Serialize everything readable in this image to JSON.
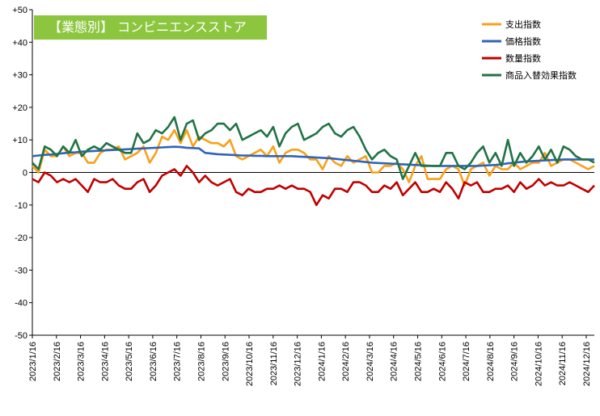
{
  "title": "【業態別】 コンビニエンスストア",
  "chart_data": {
    "type": "line",
    "ylim": [
      -50,
      50
    ],
    "y_ticks": [
      "+50",
      "+40",
      "+30",
      "+20",
      "+10",
      "0",
      "-10",
      "-20",
      "-30",
      "-40",
      "-50"
    ],
    "x_ticks": [
      "2023/1/16",
      "2023/2/16",
      "2023/3/16",
      "2023/4/16",
      "2023/5/16",
      "2023/6/16",
      "2023/7/16",
      "2023/8/16",
      "2023/9/16",
      "2023/10/16",
      "2023/11/16",
      "2023/12/16",
      "2024/1/16",
      "2024/2/16",
      "2024/3/16",
      "2024/4/16",
      "2024/5/16",
      "2024/6/16",
      "2024/7/16",
      "2024/8/16",
      "2024/9/16",
      "2024/10/16",
      "2024/11/16",
      "2024/12/16"
    ],
    "legend_position": "top-right",
    "grid": false,
    "series": [
      {
        "name": "支出指数",
        "color": "#f7a11a",
        "values": [
          2,
          0,
          7,
          5,
          5,
          8,
          5,
          6,
          6,
          3,
          3,
          6,
          7,
          7,
          8,
          4,
          5,
          6,
          8,
          3,
          6,
          11,
          10,
          13,
          9,
          13,
          8,
          11,
          10,
          9,
          9,
          8,
          10,
          5,
          4,
          5,
          6,
          7,
          5,
          8,
          3,
          6,
          7,
          7,
          6,
          4,
          4,
          1,
          5,
          3,
          2,
          5,
          3,
          4,
          5,
          0,
          0,
          2,
          2,
          3,
          1,
          -3,
          2,
          5,
          -2,
          -2,
          -2,
          1,
          2,
          1,
          -4,
          1,
          2,
          3,
          -1,
          2,
          1,
          1,
          3,
          1,
          2,
          3,
          3,
          6,
          2,
          3,
          4,
          4,
          3,
          2,
          1,
          2
        ]
      },
      {
        "name": "価格指数",
        "color": "#2f64b8",
        "values": [
          5,
          5.2,
          5.4,
          5.5,
          5.7,
          5.9,
          6.1,
          6.2,
          6.4,
          6.5,
          6.6,
          6.7,
          6.8,
          6.9,
          7,
          7.1,
          7.2,
          7.3,
          7.4,
          7.5,
          7.6,
          7.7,
          7.8,
          7.9,
          7.8,
          7.6,
          7.5,
          7.4,
          6,
          5.8,
          5.6,
          5.5,
          5.4,
          5.3,
          5.2,
          5.2,
          5.1,
          5.1,
          5,
          5,
          5,
          5,
          5,
          4.9,
          4.8,
          4.7,
          4.6,
          4.5,
          4.4,
          4.2,
          4,
          3.8,
          3.6,
          3.4,
          3.2,
          3,
          2.9,
          2.8,
          2.7,
          2.6,
          2.5,
          2.4,
          2.3,
          2.2,
          2.1,
          2,
          2,
          2,
          2,
          2,
          2,
          2,
          2,
          2.1,
          2.2,
          2.3,
          2.5,
          2.8,
          3,
          3.2,
          3.4,
          3.5,
          3.6,
          3.7,
          3.8,
          3.9,
          4,
          4,
          4,
          4,
          4,
          4
        ]
      },
      {
        "name": "数量指数",
        "color": "#c00000",
        "values": [
          -2,
          -3,
          0,
          -1,
          -3,
          -2,
          -3,
          -2,
          -4,
          -6,
          -2,
          -3,
          -3,
          -2,
          -4,
          -5,
          -5,
          -3,
          -2,
          -6,
          -4,
          -1,
          0,
          1,
          -1,
          2,
          0,
          -3,
          -1,
          -3,
          -4,
          -3,
          -2,
          -6,
          -7,
          -5,
          -6,
          -6,
          -5,
          -5,
          -4,
          -5,
          -4,
          -5,
          -5,
          -6,
          -10,
          -7,
          -8,
          -5,
          -5,
          -6,
          -3,
          -3,
          -4,
          -6,
          -6,
          -4,
          -5,
          -3,
          -7,
          -5,
          -3,
          -6,
          -6,
          -5,
          -6,
          -3,
          -5,
          -8,
          -3,
          -4,
          -3,
          -6,
          -6,
          -5,
          -5,
          -4,
          -6,
          -3,
          -5,
          -4,
          -2,
          -4,
          -3,
          -4,
          -4,
          -3,
          -4,
          -5,
          -6,
          -4
        ]
      },
      {
        "name": "商品入替効果指数",
        "color": "#217346",
        "values": [
          3,
          1,
          8,
          7,
          5,
          8,
          6,
          10,
          5,
          7,
          8,
          7,
          9,
          8,
          7,
          6,
          6,
          12,
          9,
          10,
          13,
          12,
          14,
          17,
          10,
          15,
          16,
          10,
          12,
          13,
          15,
          15,
          13,
          15,
          10,
          11,
          12,
          13,
          11,
          14,
          8,
          12,
          14,
          15,
          10,
          11,
          12,
          14,
          15,
          12,
          11,
          13,
          14,
          11,
          7,
          4,
          6,
          7,
          5,
          4,
          -2,
          2,
          6,
          2,
          2,
          2,
          2,
          6,
          6,
          2,
          1,
          3,
          6,
          8,
          3,
          6,
          2,
          10,
          2,
          6,
          3,
          5,
          8,
          4,
          7,
          3,
          8,
          7,
          5,
          4,
          4,
          3
        ]
      }
    ]
  }
}
